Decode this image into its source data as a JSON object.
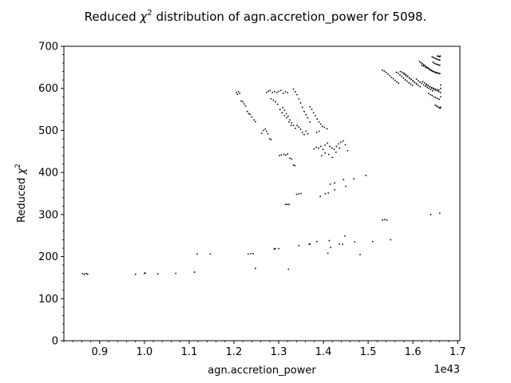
{
  "chart_data": {
    "type": "scatter",
    "title_prefix": "Reduced ",
    "title_symbol": "χ",
    "title_superscript": "2",
    "title_suffix": " distribution of agn.accretion_power for 5098.",
    "xlabel": "agn.accretion_power",
    "ylabel_prefix": "Reduced ",
    "ylabel_symbol": "χ",
    "ylabel_superscript": "2",
    "x_offset_label": "1e43",
    "xlim": [
      0.82,
      1.705
    ],
    "ylim": [
      0,
      700
    ],
    "x_ticks": [
      {
        "value": 0.9,
        "label": "0.9"
      },
      {
        "value": 1.0,
        "label": "1.0"
      },
      {
        "value": 1.1,
        "label": "1.1"
      },
      {
        "value": 1.2,
        "label": "1.2"
      },
      {
        "value": 1.3,
        "label": "1.3"
      },
      {
        "value": 1.4,
        "label": "1.4"
      },
      {
        "value": 1.5,
        "label": "1.5"
      },
      {
        "value": 1.6,
        "label": "1.6"
      },
      {
        "value": 1.7,
        "label": "1.7"
      }
    ],
    "y_ticks": [
      {
        "value": 0,
        "label": "0"
      },
      {
        "value": 100,
        "label": "100"
      },
      {
        "value": 200,
        "label": "200"
      },
      {
        "value": 300,
        "label": "300"
      },
      {
        "value": 400,
        "label": "400"
      },
      {
        "value": 500,
        "label": "500"
      },
      {
        "value": 600,
        "label": "600"
      },
      {
        "value": 700,
        "label": "700"
      }
    ],
    "grid": false,
    "marker_color": "#000000",
    "series": [
      {
        "points": [
          [
            0.862,
            159
          ],
          [
            0.866,
            158
          ],
          [
            0.87,
            160
          ],
          [
            0.873,
            158
          ],
          [
            0.98,
            158
          ],
          [
            1.0,
            160
          ],
          [
            1.002,
            161
          ],
          [
            1.03,
            159
          ],
          [
            1.07,
            160
          ],
          [
            1.112,
            163
          ],
          [
            1.118,
            206
          ],
          [
            1.147,
            206
          ],
          [
            1.232,
            206
          ],
          [
            1.238,
            207
          ],
          [
            1.243,
            207
          ],
          [
            1.248,
            172
          ],
          [
            1.29,
            218
          ],
          [
            1.293,
            219
          ],
          [
            1.3,
            219
          ],
          [
            1.322,
            170
          ],
          [
            1.345,
            226
          ],
          [
            1.368,
            229
          ],
          [
            1.37,
            230
          ],
          [
            1.385,
            236
          ],
          [
            1.41,
            208
          ],
          [
            1.413,
            238
          ],
          [
            1.416,
            222
          ],
          [
            1.436,
            230
          ],
          [
            1.443,
            229
          ],
          [
            1.448,
            249
          ],
          [
            1.47,
            235
          ],
          [
            1.482,
            205
          ],
          [
            1.51,
            236
          ],
          [
            1.55,
            240
          ],
          [
            1.64,
            300
          ],
          [
            1.66,
            303
          ],
          [
            1.532,
            287
          ],
          [
            1.537,
            288
          ],
          [
            1.542,
            287
          ],
          [
            1.315,
            324
          ],
          [
            1.319,
            324
          ],
          [
            1.323,
            324
          ],
          [
            1.34,
            348
          ],
          [
            1.345,
            349
          ],
          [
            1.35,
            350
          ],
          [
            1.393,
            343
          ],
          [
            1.404,
            349
          ],
          [
            1.411,
            351
          ],
          [
            1.425,
            359
          ],
          [
            1.45,
            367
          ],
          [
            1.415,
            372
          ],
          [
            1.425,
            375
          ],
          [
            1.445,
            383
          ],
          [
            1.468,
            385
          ],
          [
            1.495,
            393
          ],
          [
            1.205,
            590
          ],
          [
            1.208,
            586
          ],
          [
            1.21,
            592
          ],
          [
            1.213,
            588
          ],
          [
            1.216,
            570
          ],
          [
            1.22,
            568
          ],
          [
            1.223,
            563
          ],
          [
            1.226,
            558
          ],
          [
            1.23,
            545
          ],
          [
            1.233,
            540
          ],
          [
            1.236,
            538
          ],
          [
            1.24,
            532
          ],
          [
            1.245,
            525
          ],
          [
            1.248,
            521
          ],
          [
            1.262,
            493
          ],
          [
            1.266,
            500
          ],
          [
            1.27,
            503
          ],
          [
            1.273,
            498
          ],
          [
            1.276,
            492
          ],
          [
            1.28,
            480
          ],
          [
            1.283,
            478
          ],
          [
            1.273,
            590
          ],
          [
            1.277,
            593
          ],
          [
            1.281,
            595
          ],
          [
            1.286,
            590
          ],
          [
            1.291,
            592
          ],
          [
            1.296,
            590
          ],
          [
            1.3,
            593
          ],
          [
            1.305,
            595
          ],
          [
            1.31,
            588
          ],
          [
            1.315,
            592
          ],
          [
            1.32,
            590
          ],
          [
            1.283,
            575
          ],
          [
            1.288,
            572
          ],
          [
            1.293,
            568
          ],
          [
            1.298,
            562
          ],
          [
            1.303,
            550
          ],
          [
            1.308,
            542
          ],
          [
            1.313,
            535
          ],
          [
            1.318,
            530
          ],
          [
            1.323,
            520
          ],
          [
            1.328,
            512
          ],
          [
            1.333,
            598
          ],
          [
            1.337,
            592
          ],
          [
            1.341,
            585
          ],
          [
            1.345,
            575
          ],
          [
            1.349,
            565
          ],
          [
            1.353,
            555
          ],
          [
            1.357,
            545
          ],
          [
            1.361,
            537
          ],
          [
            1.365,
            530
          ],
          [
            1.37,
            520
          ],
          [
            1.32,
            444
          ],
          [
            1.316,
            441
          ],
          [
            1.312,
            443
          ],
          [
            1.306,
            442
          ],
          [
            1.302,
            440
          ],
          [
            1.325,
            434
          ],
          [
            1.329,
            432
          ],
          [
            1.333,
            418
          ],
          [
            1.336,
            416
          ],
          [
            1.309,
            554
          ],
          [
            1.313,
            548
          ],
          [
            1.317,
            540
          ],
          [
            1.321,
            534
          ],
          [
            1.325,
            525
          ],
          [
            1.329,
            518
          ],
          [
            1.333,
            512
          ],
          [
            1.337,
            505
          ],
          [
            1.341,
            512
          ],
          [
            1.345,
            508
          ],
          [
            1.349,
            503
          ],
          [
            1.353,
            495
          ],
          [
            1.357,
            490
          ],
          [
            1.361,
            498
          ],
          [
            1.365,
            492
          ],
          [
            1.37,
            556
          ],
          [
            1.374,
            550
          ],
          [
            1.378,
            542
          ],
          [
            1.382,
            535
          ],
          [
            1.386,
            527
          ],
          [
            1.39,
            520
          ],
          [
            1.394,
            515
          ],
          [
            1.398,
            510
          ],
          [
            1.402,
            507
          ],
          [
            1.408,
            504
          ],
          [
            1.379,
            456
          ],
          [
            1.384,
            460
          ],
          [
            1.389,
            458
          ],
          [
            1.394,
            462
          ],
          [
            1.399,
            455
          ],
          [
            1.404,
            465
          ],
          [
            1.409,
            470
          ],
          [
            1.414,
            462
          ],
          [
            1.419,
            458
          ],
          [
            1.424,
            455
          ],
          [
            1.429,
            462
          ],
          [
            1.434,
            468
          ],
          [
            1.439,
            472
          ],
          [
            1.444,
            475
          ],
          [
            1.449,
            466
          ],
          [
            1.454,
            452
          ],
          [
            1.396,
            440
          ],
          [
            1.404,
            446
          ],
          [
            1.412,
            443
          ],
          [
            1.42,
            436
          ],
          [
            1.428,
            448
          ],
          [
            1.436,
            458
          ],
          [
            1.385,
            495
          ],
          [
            1.39,
            498
          ],
          [
            1.532,
            643
          ],
          [
            1.536,
            641
          ],
          [
            1.54,
            638
          ],
          [
            1.544,
            634
          ],
          [
            1.548,
            630
          ],
          [
            1.552,
            626
          ],
          [
            1.556,
            623
          ],
          [
            1.56,
            619
          ],
          [
            1.564,
            615
          ],
          [
            1.568,
            612
          ],
          [
            1.563,
            638
          ],
          [
            1.567,
            636
          ],
          [
            1.571,
            632
          ],
          [
            1.575,
            628
          ],
          [
            1.579,
            624
          ],
          [
            1.583,
            620
          ],
          [
            1.587,
            617
          ],
          [
            1.591,
            613
          ],
          [
            1.595,
            610
          ],
          [
            1.599,
            607
          ],
          [
            1.572,
            640
          ],
          [
            1.576,
            638
          ],
          [
            1.58,
            636
          ],
          [
            1.584,
            633
          ],
          [
            1.588,
            629
          ],
          [
            1.592,
            625
          ],
          [
            1.596,
            622
          ],
          [
            1.6,
            618
          ],
          [
            1.604,
            614
          ],
          [
            1.608,
            611
          ],
          [
            1.58,
            634
          ],
          [
            1.584,
            631
          ],
          [
            1.588,
            628
          ],
          [
            1.592,
            624
          ],
          [
            1.596,
            621
          ],
          [
            1.6,
            617
          ],
          [
            1.604,
            614
          ],
          [
            1.608,
            610
          ],
          [
            1.612,
            607
          ],
          [
            1.616,
            604
          ],
          [
            1.615,
            664
          ],
          [
            1.618,
            661
          ],
          [
            1.621,
            659
          ],
          [
            1.624,
            656
          ],
          [
            1.627,
            654
          ],
          [
            1.63,
            651
          ],
          [
            1.633,
            649
          ],
          [
            1.636,
            647
          ],
          [
            1.639,
            644
          ],
          [
            1.642,
            642
          ],
          [
            1.645,
            640
          ],
          [
            1.648,
            639
          ],
          [
            1.651,
            638
          ],
          [
            1.654,
            637
          ],
          [
            1.657,
            636
          ],
          [
            1.66,
            635
          ],
          [
            1.62,
            655
          ],
          [
            1.624,
            653
          ],
          [
            1.628,
            650
          ],
          [
            1.632,
            648
          ],
          [
            1.636,
            645
          ],
          [
            1.64,
            643
          ],
          [
            1.644,
            641
          ],
          [
            1.648,
            639
          ],
          [
            1.652,
            637
          ],
          [
            1.656,
            636
          ],
          [
            1.66,
            635
          ],
          [
            1.643,
            675
          ],
          [
            1.646,
            673
          ],
          [
            1.649,
            672
          ],
          [
            1.652,
            670
          ],
          [
            1.655,
            669
          ],
          [
            1.658,
            668
          ],
          [
            1.66,
            667
          ],
          [
            1.645,
            662
          ],
          [
            1.648,
            660
          ],
          [
            1.651,
            658
          ],
          [
            1.654,
            657
          ],
          [
            1.657,
            656
          ],
          [
            1.66,
            655
          ],
          [
            1.655,
            677
          ],
          [
            1.658,
            676
          ],
          [
            1.66,
            675
          ],
          [
            1.661,
            677
          ],
          [
            1.608,
            622
          ],
          [
            1.612,
            618
          ],
          [
            1.616,
            615
          ],
          [
            1.62,
            612
          ],
          [
            1.624,
            608
          ],
          [
            1.628,
            605
          ],
          [
            1.632,
            602
          ],
          [
            1.636,
            600
          ],
          [
            1.64,
            597
          ],
          [
            1.644,
            594
          ],
          [
            1.622,
            616
          ],
          [
            1.626,
            613
          ],
          [
            1.63,
            610
          ],
          [
            1.634,
            607
          ],
          [
            1.638,
            604
          ],
          [
            1.642,
            601
          ],
          [
            1.646,
            598
          ],
          [
            1.65,
            596
          ],
          [
            1.654,
            594
          ],
          [
            1.658,
            592
          ],
          [
            1.635,
            588
          ],
          [
            1.639,
            585
          ],
          [
            1.643,
            583
          ],
          [
            1.647,
            580
          ],
          [
            1.651,
            578
          ],
          [
            1.655,
            576
          ],
          [
            1.659,
            574
          ],
          [
            1.65,
            560
          ],
          [
            1.653,
            558
          ],
          [
            1.656,
            556
          ],
          [
            1.659,
            554
          ],
          [
            1.661,
            553
          ],
          [
            1.662,
            555
          ],
          [
            1.63,
            608
          ],
          [
            1.634,
            606
          ],
          [
            1.638,
            604
          ],
          [
            1.642,
            602
          ],
          [
            1.646,
            600
          ],
          [
            1.65,
            598
          ],
          [
            1.654,
            597
          ],
          [
            1.658,
            596
          ],
          [
            1.662,
            600
          ],
          [
            1.662,
            590
          ],
          [
            1.662,
            580
          ],
          [
            1.662,
            608
          ]
        ]
      }
    ]
  }
}
